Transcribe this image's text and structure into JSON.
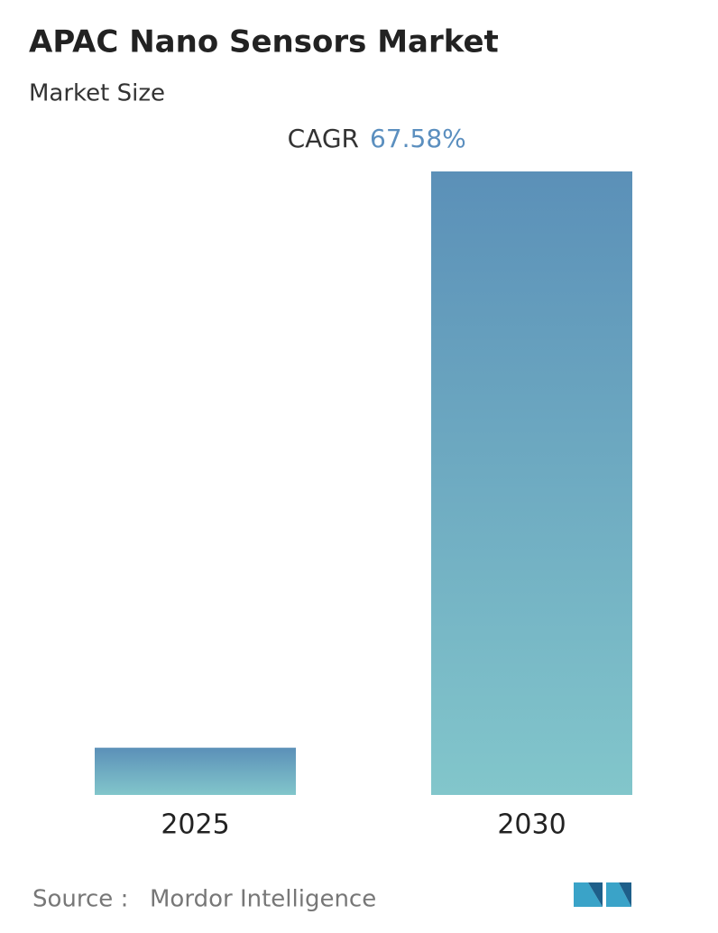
{
  "chart_data": {
    "type": "bar",
    "title": "APAC Nano Sensors Market",
    "subtitle": "Market Size",
    "cagr_label": "CAGR",
    "cagr_value": "67.58%",
    "categories": [
      "2025",
      "2030"
    ],
    "values": [
      1,
      13.2
    ],
    "gradient": [
      "#5b90b8",
      "#82c6cb"
    ],
    "source_label": "Source :",
    "source": "Mordor Intelligence"
  }
}
